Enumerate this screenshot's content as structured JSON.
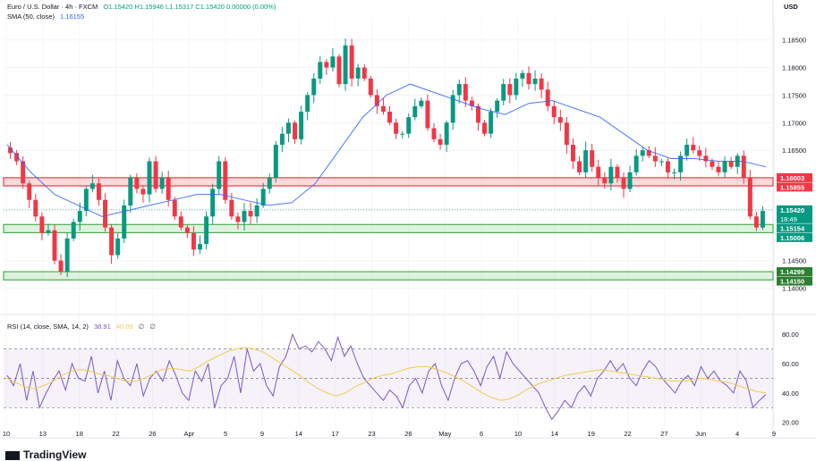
{
  "header": {
    "symbol": "Euro / U.S. Dollar · 4h · FXCM",
    "ohlc": "O1.15420 H1.15946 L1.15317 C1.15420 0.00000 (0.00%)",
    "sma_label": "SMA (50, close)",
    "sma_value": "1.16155",
    "currency": "USD"
  },
  "rsi_legend": {
    "label": "RSI (14, close, SMA, 14, 2)",
    "value": "38.91",
    "sma_value": "40.09",
    "extra1": "∅",
    "extra2": "∅"
  },
  "branding": "TradingView",
  "colors": {
    "up": "#089981",
    "down": "#f23645",
    "sma": "#2962ff",
    "rsi": "#7e57c2",
    "rsi_ma": "#f7c948",
    "resistance_zone": "#f23645",
    "support_zone": "#4caf50"
  },
  "chart_data": [
    {
      "type": "candlestick",
      "symbol": "EURUSD",
      "timeframe": "4h",
      "ylim": [
        1.1375,
        1.189
      ],
      "y_ticks": [
        "1.18500",
        "1.18000",
        "1.17500",
        "1.17000",
        "1.16500",
        "1.14500",
        "1.14000"
      ],
      "x_ticks": [
        "10",
        "13",
        "18",
        "22",
        "26",
        "Apr",
        "5",
        "9",
        "14",
        "17",
        "23",
        "26",
        "May",
        "6",
        "10",
        "14",
        "19",
        "22",
        "27",
        "Jun",
        "4",
        "9"
      ],
      "close_path": [
        1.1645,
        1.163,
        1.159,
        1.156,
        1.153,
        1.15,
        1.1505,
        1.145,
        1.143,
        1.149,
        1.152,
        1.154,
        1.158,
        1.159,
        1.156,
        1.151,
        1.146,
        1.149,
        1.155,
        1.16,
        1.158,
        1.157,
        1.163,
        1.158,
        1.16,
        1.156,
        1.153,
        1.151,
        1.15,
        1.147,
        1.148,
        1.153,
        1.158,
        1.163,
        1.156,
        1.153,
        1.152,
        1.154,
        1.153,
        1.155,
        1.158,
        1.16,
        1.166,
        1.168,
        1.17,
        1.167,
        1.172,
        1.175,
        1.178,
        1.181,
        1.18,
        1.182,
        1.177,
        1.184,
        1.178,
        1.18,
        1.178,
        1.175,
        1.173,
        1.172,
        1.17,
        1.168,
        1.168,
        1.171,
        1.173,
        1.174,
        1.169,
        1.167,
        1.166,
        1.17,
        1.175,
        1.177,
        1.174,
        1.173,
        1.17,
        1.168,
        1.172,
        1.174,
        1.177,
        1.175,
        1.178,
        1.179,
        1.177,
        1.178,
        1.176,
        1.173,
        1.171,
        1.17,
        1.166,
        1.163,
        1.161,
        1.165,
        1.162,
        1.16,
        1.159,
        1.162,
        1.16,
        1.158,
        1.161,
        1.164,
        1.165,
        1.164,
        1.163,
        1.163,
        1.161,
        1.161,
        1.164,
        1.166,
        1.165,
        1.164,
        1.163,
        1.162,
        1.161,
        1.163,
        1.162,
        1.164,
        1.16,
        1.153,
        1.151,
        1.154
      ],
      "sma_path": [
        1.166,
        1.161,
        1.157,
        1.155,
        1.153,
        1.154,
        1.155,
        1.156,
        1.157,
        1.157,
        1.156,
        1.155,
        1.1555,
        1.159,
        1.165,
        1.171,
        1.175,
        1.177,
        1.1755,
        1.174,
        1.1725,
        1.1715,
        1.1735,
        1.174,
        1.1725,
        1.171,
        1.168,
        1.165,
        1.1635,
        1.1635,
        1.163,
        1.163,
        1.162
      ],
      "rsi": {
        "ylim": [
          18,
          85
        ],
        "y_ticks": [
          "80.00",
          "60.00",
          "40.00",
          "20.00"
        ],
        "overbought": 70,
        "middle": 50,
        "oversold": 30,
        "values": [
          52,
          45,
          60,
          35,
          55,
          30,
          40,
          48,
          55,
          42,
          60,
          50,
          48,
          65,
          40,
          55,
          35,
          62,
          50,
          45,
          60,
          38,
          50,
          55,
          48,
          62,
          52,
          40,
          35,
          55,
          48,
          60,
          30,
          45,
          50,
          65,
          40,
          70,
          55,
          60,
          45,
          38,
          58,
          65,
          80,
          70,
          72,
          68,
          75,
          70,
          62,
          78,
          65,
          72,
          60,
          50,
          45,
          40,
          35,
          42,
          38,
          30,
          45,
          50,
          40,
          55,
          60,
          45,
          35,
          50,
          60,
          62,
          55,
          45,
          58,
          65,
          50,
          68,
          60,
          55,
          50,
          45,
          40,
          30,
          22,
          28,
          35,
          30,
          40,
          45,
          38,
          50,
          55,
          62,
          55,
          60,
          50,
          45,
          55,
          62,
          58,
          50,
          45,
          40,
          48,
          52,
          45,
          58,
          50,
          55,
          48,
          45,
          40,
          55,
          48,
          30,
          35,
          39
        ],
        "ma_values": [
          50,
          47,
          44,
          43,
          45,
          48,
          52,
          55,
          56,
          55,
          53,
          52,
          50,
          48,
          48,
          50,
          53,
          56,
          57,
          56,
          55,
          58,
          62,
          65,
          68,
          70,
          71,
          70,
          68,
          64,
          60,
          56,
          52,
          47,
          43,
          40,
          38,
          40,
          44,
          47,
          50,
          52,
          53,
          55,
          57,
          58,
          58,
          56,
          54,
          51,
          48,
          44,
          40,
          37,
          35,
          36,
          39,
          43,
          46,
          48,
          50,
          52,
          53,
          54,
          55,
          56,
          55,
          54,
          53,
          52,
          51,
          50,
          49,
          48,
          48,
          49,
          50,
          49,
          48,
          47,
          45,
          43,
          41,
          40
        ]
      }
    }
  ],
  "levels": [
    {
      "label": "1.16003",
      "price": 1.16003,
      "kind": "resistance"
    },
    {
      "label": "1.15855",
      "price": 1.15855,
      "kind": "resistance"
    },
    {
      "label": "1.15420",
      "price": 1.1542,
      "kind": "current",
      "sub": "18:49"
    },
    {
      "label": "1.15154",
      "price": 1.15154,
      "kind": "support"
    },
    {
      "label": "1.15006",
      "price": 1.15006,
      "kind": "support"
    },
    {
      "label": "1.14299",
      "price": 1.14299,
      "kind": "support"
    },
    {
      "label": "1.14150",
      "price": 1.1415,
      "kind": "support"
    }
  ],
  "zones": [
    {
      "from": 1.15855,
      "to": 1.16003,
      "kind": "resistance"
    },
    {
      "from": 1.15006,
      "to": 1.15154,
      "kind": "support"
    },
    {
      "from": 1.1415,
      "to": 1.14299,
      "kind": "support"
    }
  ]
}
